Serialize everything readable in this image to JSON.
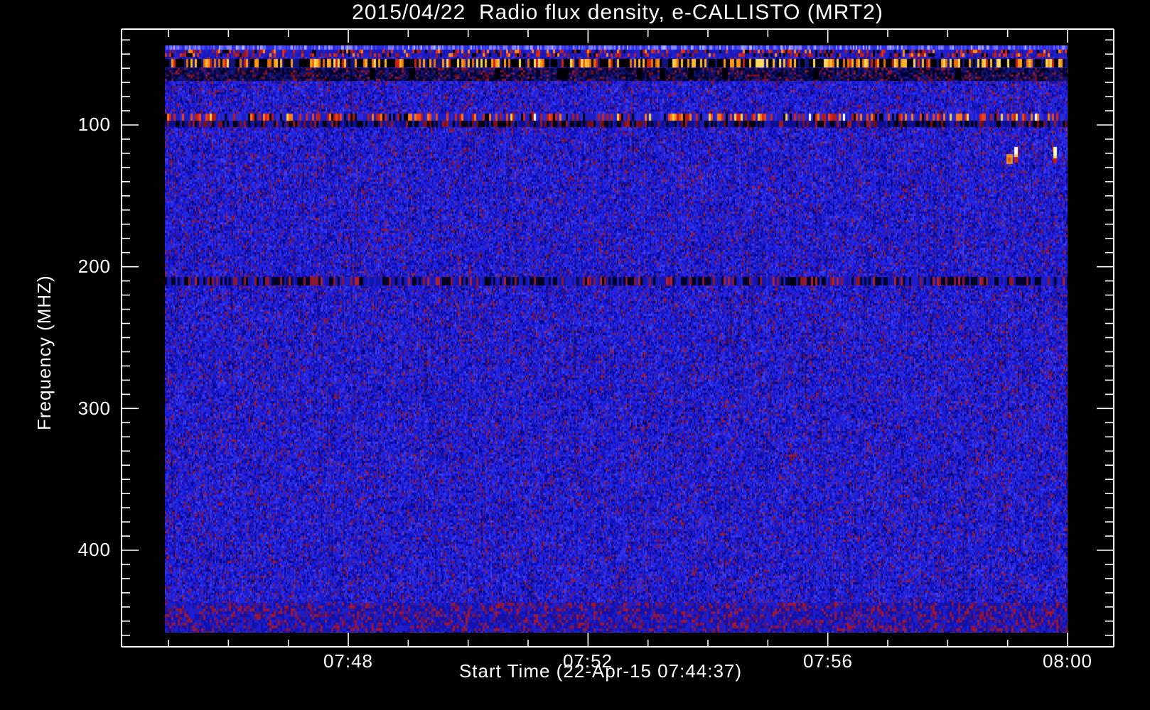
{
  "title": "2015/04/22  Radio flux density, e-CALLISTO (MRT2)",
  "chart_data": {
    "type": "heatmap",
    "title": "2015/04/22  Radio flux density, e-CALLISTO (MRT2)",
    "instrument": "e-CALLISTO (MRT2)",
    "x_axis": {
      "label": "Start Time (22-Apr-15 07:44:37)",
      "start_time": "07:44:37",
      "major_ticks": [
        "07:48",
        "07:52",
        "07:56",
        "08:00"
      ],
      "minor_tick_interval_min": 1
    },
    "y_axis": {
      "label": "Frequency (MHZ)",
      "major_ticks": [
        "100",
        "200",
        "300",
        "400"
      ],
      "minor_tick_interval_mhz": 10,
      "inverted": true,
      "range_mhz": [
        33,
        468
      ]
    },
    "image_extent": {
      "time": [
        "07:44:37",
        "08:00:00"
      ],
      "freq_mhz": [
        44,
        458
      ]
    },
    "legend_position": "none",
    "grid": false,
    "palette": {
      "background": "#000000",
      "frame": "#ffffff",
      "text": "#ffffff",
      "base_blue": [
        "#2222dd",
        "#1414c4",
        "#3030e8",
        "#0b0ba6",
        "#4040f0",
        "#00007a"
      ],
      "base_red": [
        "#8e1838",
        "#a31b2c",
        "#721448",
        "#5f1060"
      ],
      "rfi_orange": [
        "#ff9818",
        "#ffb830",
        "#e87010",
        "#ffd860"
      ],
      "rfi_red": [
        "#c02020",
        "#e03010",
        "#a01828",
        "#8c1830"
      ],
      "rfi_dark_red": [
        "#981828",
        "#7a1020",
        "#6e0c18"
      ],
      "rfi_yellow": [
        "#ffd040",
        "#ffffa0"
      ],
      "bright_blue": [
        "#6a6aff",
        "#8585ff",
        "#4848f0",
        "#b0b0ff"
      ],
      "dark": "#000020"
    },
    "rfi_bands": [
      {
        "freq_mhz": [
          44,
          47
        ],
        "style": "bright-top-row",
        "desc": "bright light-blue first channel rows"
      },
      {
        "freq_mhz": [
          47,
          52
        ],
        "style": "red-speckle",
        "desc": "intermittent red/orange RFI dashes on blue"
      },
      {
        "freq_mhz": [
          53.5,
          59.5
        ],
        "style": "orange-dash",
        "desc": "strong orange/yellow barcode-like RFI on black"
      },
      {
        "freq_mhz": [
          60,
          68
        ],
        "style": "dark-red",
        "desc": "dark band with red speckles"
      },
      {
        "freq_mhz": [
          92,
          101.5
        ],
        "style": "fm-band",
        "desc": "FM broadcast RFI: red dashes, occasional yellow/white"
      },
      {
        "freq_mhz": [
          207,
          213
        ],
        "style": "dark-sparse",
        "desc": "faint dark band with black and red speckles"
      },
      {
        "freq_mhz": [
          437,
          457
        ],
        "style": "red-tinged",
        "desc": "slightly red-tinged bottom rows"
      }
    ],
    "point_events": [
      {
        "time": "07:59:02",
        "freq_mhz": 124,
        "style": "orange-blob",
        "desc": "small orange blob"
      },
      {
        "time": "07:59:08",
        "freq_mhz": 120,
        "style": "white-dash",
        "desc": "white/yellow vertical dash with red tail"
      },
      {
        "time": "07:59:47",
        "freq_mhz": 120,
        "style": "yellow-dash",
        "desc": "yellow-white vertical dash with red tail"
      }
    ]
  }
}
